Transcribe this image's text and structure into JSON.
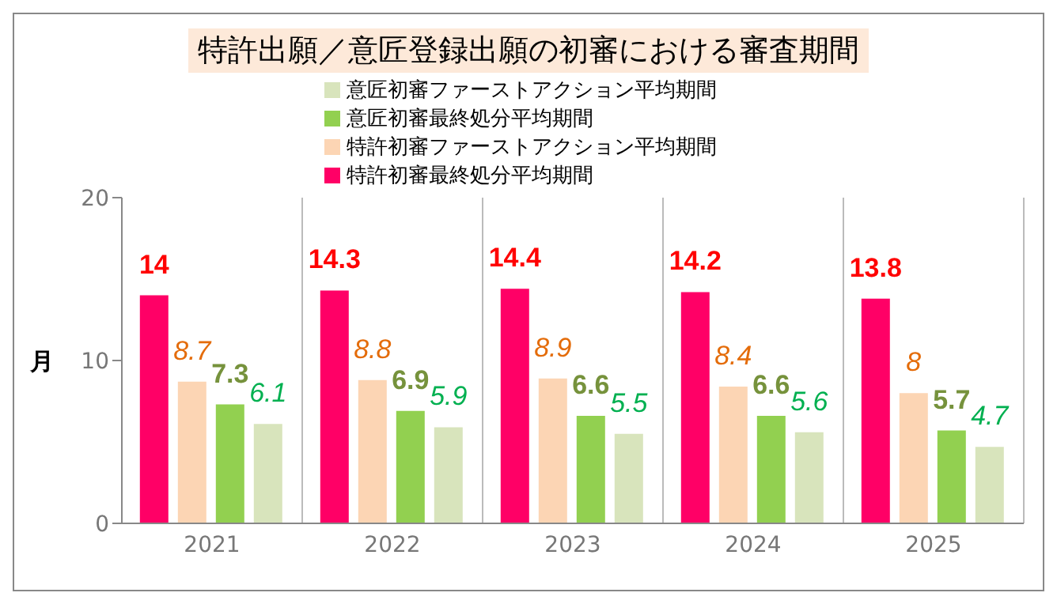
{
  "chart_data": {
    "type": "bar",
    "title": "特許出願／意匠登録出願の初審における審査期間",
    "ylabel": "月",
    "categories": [
      "2021",
      "2022",
      "2023",
      "2024",
      "2025"
    ],
    "series": [
      {
        "name": "特許初審最終処分平均期間",
        "color": "#ff0066",
        "values": [
          14,
          14.3,
          14.4,
          14.2,
          13.8
        ]
      },
      {
        "name": "特許初審ファーストアクション平均期間",
        "color": "#fcd5b4",
        "values": [
          8.7,
          8.8,
          8.9,
          8.4,
          8
        ]
      },
      {
        "name": "意匠初審最終処分平均期間",
        "color": "#92d050",
        "values": [
          7.3,
          6.9,
          6.6,
          6.6,
          5.7
        ]
      },
      {
        "name": "意匠初審ファーストアクション平均期間",
        "color": "#d8e4bc",
        "values": [
          6.1,
          5.9,
          5.5,
          5.6,
          4.7
        ]
      }
    ],
    "ylim": [
      0,
      20
    ],
    "yticks": [
      0,
      10,
      20
    ],
    "grid": "x",
    "legend": "top",
    "data_labels": true
  }
}
